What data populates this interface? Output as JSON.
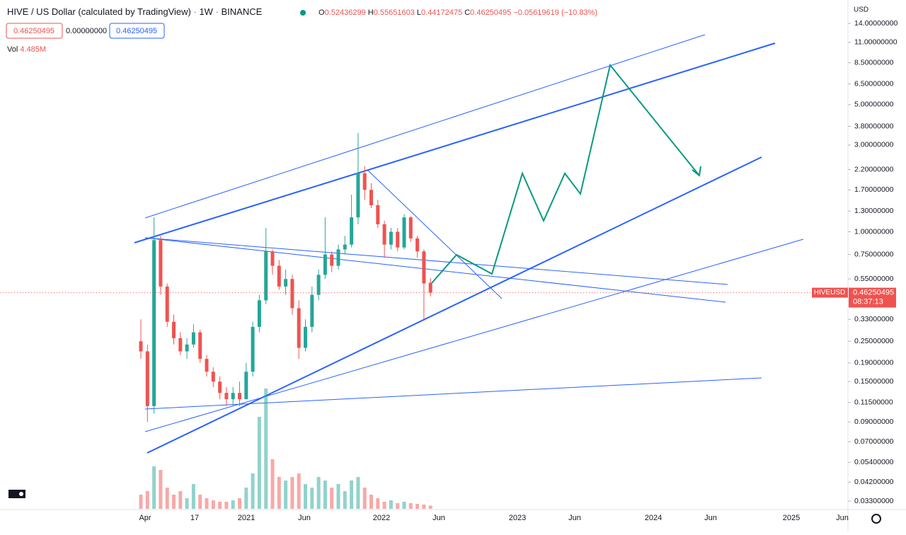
{
  "header": {
    "symbol": "HIVE / US Dollar (calculated by TradingView)",
    "interval": "1W",
    "exchange": "BINANCE",
    "ohlc": [
      {
        "key": "O",
        "value": "0.52436299"
      },
      {
        "key": "H",
        "value": "0.55651603"
      },
      {
        "key": "L",
        "value": "0.44172475"
      },
      {
        "key": "C",
        "value": "0.46250495"
      }
    ],
    "change": "−0.05619619 (−10.83%)"
  },
  "price_boxes": [
    "0.46250495",
    "0.00000000",
    "0.46250495"
  ],
  "volume": {
    "label": "Vol",
    "value": "4.485M"
  },
  "price_scale": {
    "currency": "USD",
    "ticks": [
      {
        "value": 14,
        "label": "14.00000000"
      },
      {
        "value": 11,
        "label": "11.00000000"
      },
      {
        "value": 8.5,
        "label": "8.50000000"
      },
      {
        "value": 6.5,
        "label": "6.50000000"
      },
      {
        "value": 5,
        "label": "5.00000000"
      },
      {
        "value": 3.8,
        "label": "3.80000000"
      },
      {
        "value": 3,
        "label": "3.00000000"
      },
      {
        "value": 2.2,
        "label": "2.20000000"
      },
      {
        "value": 1.7,
        "label": "1.70000000"
      },
      {
        "value": 1.3,
        "label": "1.30000000"
      },
      {
        "value": 1,
        "label": "1.00000000"
      },
      {
        "value": 0.75,
        "label": "0.75000000"
      },
      {
        "value": 0.55,
        "label": "0.55000000"
      },
      {
        "value": 0.33,
        "label": "0.33000000"
      },
      {
        "value": 0.25,
        "label": "0.25000000"
      },
      {
        "value": 0.19,
        "label": "0.19000000"
      },
      {
        "value": 0.15,
        "label": "0.15000000"
      },
      {
        "value": 0.115,
        "label": "0.11500000"
      },
      {
        "value": 0.09,
        "label": "0.09000000"
      },
      {
        "value": 0.07,
        "label": "0.07000000"
      },
      {
        "value": 0.054,
        "label": "0.05400000"
      },
      {
        "value": 0.042,
        "label": "0.04200000"
      },
      {
        "value": 0.033,
        "label": "0.03300000"
      }
    ]
  },
  "last_price": {
    "symbol": "HIVEUSD",
    "value": 0.46250495,
    "label": "0.46250495",
    "countdown": "08:37:13"
  },
  "time_axis": [
    "Apr",
    "17",
    "2021",
    "Jun",
    "2022",
    "Jun",
    "2023",
    "Jun",
    "2024",
    "Jun",
    "2025",
    "Jun"
  ],
  "candles": [
    [
      0.25,
      0.33,
      0.2,
      0.22
    ],
    [
      0.22,
      0.24,
      0.09,
      0.11
    ],
    [
      0.11,
      1.2,
      0.1,
      0.9
    ],
    [
      0.9,
      0.95,
      0.45,
      0.5
    ],
    [
      0.5,
      0.52,
      0.3,
      0.32
    ],
    [
      0.32,
      0.35,
      0.24,
      0.26
    ],
    [
      0.26,
      0.28,
      0.21,
      0.22
    ],
    [
      0.22,
      0.26,
      0.2,
      0.24
    ],
    [
      0.24,
      0.31,
      0.23,
      0.28
    ],
    [
      0.28,
      0.29,
      0.19,
      0.2
    ],
    [
      0.2,
      0.21,
      0.16,
      0.17
    ],
    [
      0.17,
      0.18,
      0.14,
      0.15
    ],
    [
      0.15,
      0.16,
      0.12,
      0.13
    ],
    [
      0.13,
      0.14,
      0.11,
      0.12
    ],
    [
      0.12,
      0.14,
      0.11,
      0.13
    ],
    [
      0.13,
      0.15,
      0.11,
      0.12
    ],
    [
      0.12,
      0.19,
      0.12,
      0.17
    ],
    [
      0.17,
      0.32,
      0.16,
      0.3
    ],
    [
      0.3,
      0.45,
      0.28,
      0.42
    ],
    [
      0.42,
      1.05,
      0.4,
      0.78
    ],
    [
      0.78,
      0.8,
      0.58,
      0.65
    ],
    [
      0.65,
      0.7,
      0.48,
      0.5
    ],
    [
      0.5,
      0.62,
      0.45,
      0.55
    ],
    [
      0.55,
      0.58,
      0.35,
      0.38
    ],
    [
      0.38,
      0.42,
      0.2,
      0.23
    ],
    [
      0.23,
      0.33,
      0.22,
      0.3
    ],
    [
      0.3,
      0.5,
      0.28,
      0.45
    ],
    [
      0.45,
      0.62,
      0.42,
      0.58
    ],
    [
      0.58,
      1.2,
      0.55,
      0.75
    ],
    [
      0.75,
      0.78,
      0.6,
      0.65
    ],
    [
      0.65,
      0.85,
      0.62,
      0.8
    ],
    [
      0.8,
      0.95,
      0.75,
      0.85
    ],
    [
      0.85,
      1.6,
      0.82,
      1.2
    ],
    [
      1.2,
      3.5,
      1.1,
      2.1
    ],
    [
      2.1,
      2.3,
      1.5,
      1.7
    ],
    [
      1.7,
      1.85,
      1.35,
      1.4
    ],
    [
      1.4,
      1.5,
      1.05,
      1.1
    ],
    [
      1.1,
      1.15,
      0.72,
      0.85
    ],
    [
      0.85,
      1.05,
      0.8,
      1.0
    ],
    [
      1.0,
      1.05,
      0.78,
      0.82
    ],
    [
      0.82,
      1.25,
      0.8,
      1.2
    ],
    [
      1.2,
      1.22,
      0.88,
      0.92
    ],
    [
      0.92,
      0.95,
      0.72,
      0.78
    ],
    [
      0.78,
      0.8,
      0.33,
      0.52
    ],
    [
      0.52436299,
      0.55651603,
      0.44172475,
      0.46250495
    ]
  ],
  "volumes": [
    20,
    25,
    60,
    55,
    30,
    20,
    25,
    15,
    35,
    20,
    15,
    12,
    10,
    10,
    12,
    15,
    30,
    50,
    130,
    170,
    70,
    45,
    40,
    45,
    50,
    35,
    30,
    45,
    40,
    30,
    35,
    25,
    40,
    45,
    30,
    20,
    15,
    10,
    12,
    8,
    10,
    8,
    7,
    6,
    4.485
  ]
}
